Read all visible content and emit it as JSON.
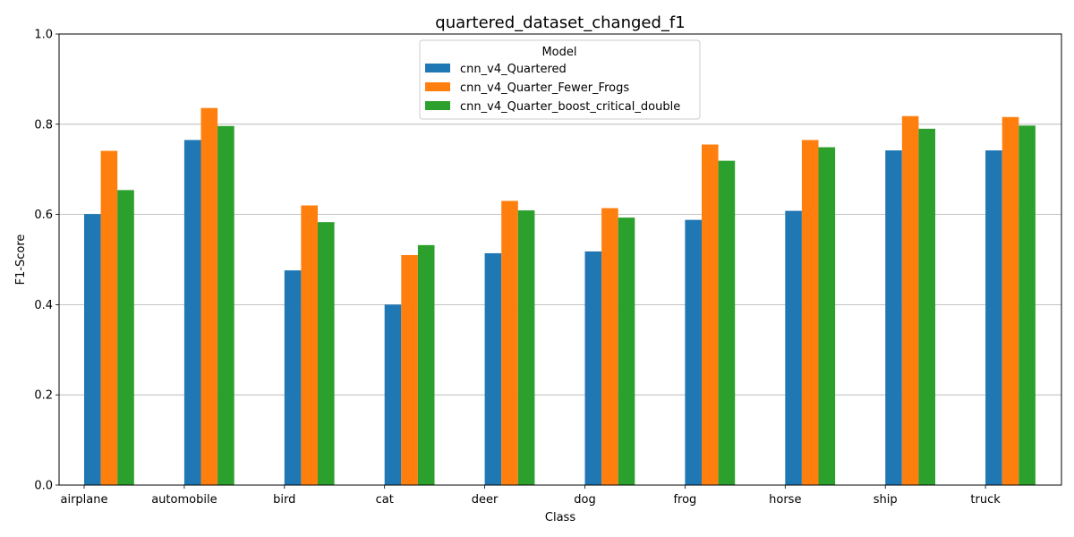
{
  "chart_data": {
    "type": "bar",
    "title": "quartered_dataset_changed_f1",
    "xlabel": "Class",
    "ylabel": "F1-Score",
    "ylim": [
      0,
      1.0
    ],
    "yticks": [
      "0.0",
      "0.2",
      "0.4",
      "0.6",
      "0.8",
      "1.0"
    ],
    "grid": "horizontal",
    "legend_title": "Model",
    "legend_position": "top-center",
    "categories": [
      "airplane",
      "automobile",
      "bird",
      "cat",
      "deer",
      "dog",
      "frog",
      "horse",
      "ship",
      "truck"
    ],
    "series": [
      {
        "name": "cnn_v4_Quartered",
        "color": "#1f77b4",
        "values": [
          0.601,
          0.765,
          0.476,
          0.4,
          0.514,
          0.518,
          0.588,
          0.608,
          0.742,
          0.742
        ]
      },
      {
        "name": "cnn_v4_Quarter_Fewer_Frogs",
        "color": "#ff7f0e",
        "values": [
          0.741,
          0.836,
          0.62,
          0.51,
          0.63,
          0.614,
          0.755,
          0.765,
          0.818,
          0.816
        ]
      },
      {
        "name": "cnn_v4_Quarter_boost_critical_double",
        "color": "#2ca02c",
        "values": [
          0.654,
          0.796,
          0.583,
          0.532,
          0.609,
          0.593,
          0.719,
          0.749,
          0.79,
          0.797
        ]
      }
    ]
  }
}
